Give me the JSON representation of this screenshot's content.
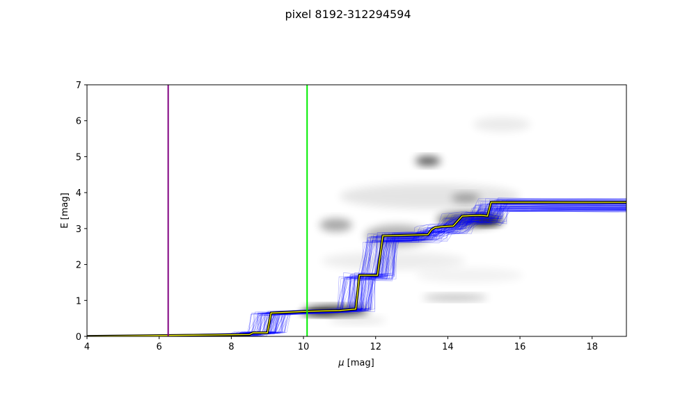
{
  "chart_data": {
    "type": "line",
    "title": "pixel 8192-312294594",
    "xlabel_symbol": "μ",
    "xlabel_unit": " [mag]",
    "ylabel": "E [mag]",
    "xlim": [
      4,
      18.95
    ],
    "ylim": [
      0,
      7
    ],
    "x_ticks": [
      4,
      6,
      8,
      10,
      12,
      14,
      16,
      18
    ],
    "y_ticks": [
      0,
      1,
      2,
      3,
      4,
      5,
      6,
      7
    ],
    "grid": false,
    "legend": "none",
    "vertical_lines": [
      {
        "x": 6.25,
        "color": "#800080"
      },
      {
        "x": 10.1,
        "color": "#00ee00"
      }
    ],
    "density_blobs": [
      {
        "x": 10.9,
        "y": 0.72,
        "rx": 0.9,
        "ry": 0.12,
        "opacity": 0.9
      },
      {
        "x": 10.4,
        "y": 0.66,
        "rx": 0.5,
        "ry": 0.08,
        "opacity": 0.6
      },
      {
        "x": 13.45,
        "y": 4.88,
        "rx": 0.35,
        "ry": 0.12,
        "opacity": 0.7
      },
      {
        "x": 10.9,
        "y": 3.1,
        "rx": 0.45,
        "ry": 0.18,
        "opacity": 0.35
      },
      {
        "x": 14.6,
        "y": 3.25,
        "rx": 0.9,
        "ry": 0.2,
        "opacity": 0.65
      },
      {
        "x": 15.1,
        "y": 3.22,
        "rx": 0.4,
        "ry": 0.12,
        "opacity": 0.8
      },
      {
        "x": 14.5,
        "y": 3.85,
        "rx": 0.4,
        "ry": 0.12,
        "opacity": 0.35
      },
      {
        "x": 12.6,
        "y": 2.8,
        "rx": 0.9,
        "ry": 0.3,
        "opacity": 0.3
      },
      {
        "x": 14.2,
        "y": 1.08,
        "rx": 0.9,
        "ry": 0.08,
        "opacity": 0.3
      },
      {
        "x": 15.5,
        "y": 5.9,
        "rx": 0.8,
        "ry": 0.2,
        "opacity": 0.08
      },
      {
        "x": 13.5,
        "y": 3.9,
        "rx": 2.5,
        "ry": 0.35,
        "opacity": 0.1
      },
      {
        "x": 12.5,
        "y": 2.1,
        "rx": 2.0,
        "ry": 0.25,
        "opacity": 0.07
      },
      {
        "x": 14.6,
        "y": 1.7,
        "rx": 1.5,
        "ry": 0.2,
        "opacity": 0.05
      },
      {
        "x": 11.5,
        "y": 0.45,
        "rx": 0.8,
        "ry": 0.1,
        "opacity": 0.1
      }
    ],
    "best_fit": {
      "line_color": "#000000",
      "highlight_color": "#ffff00",
      "x": [
        4.0,
        8.5,
        8.6,
        9.0,
        9.1,
        10.2,
        11.0,
        11.45,
        11.55,
        12.05,
        12.2,
        13.45,
        13.55,
        13.65,
        13.9,
        14.15,
        14.4,
        14.9,
        15.1,
        15.2,
        18.95
      ],
      "y": [
        0.0,
        0.05,
        0.1,
        0.1,
        0.65,
        0.7,
        0.72,
        0.76,
        1.7,
        1.7,
        2.8,
        2.83,
        2.97,
        3.03,
        3.06,
        3.07,
        3.35,
        3.37,
        3.35,
        3.73,
        3.73
      ]
    },
    "samples": {
      "color": "#0000ff",
      "count": 90
    }
  }
}
